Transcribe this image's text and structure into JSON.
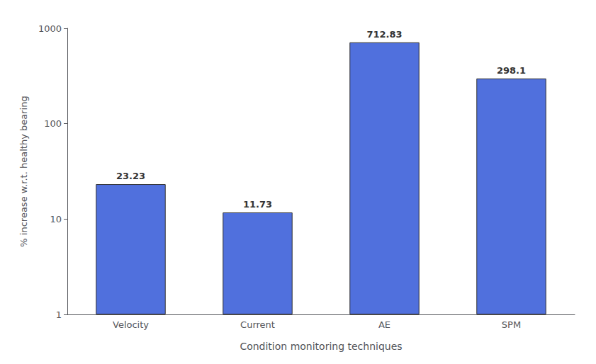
{
  "chart_data": {
    "type": "bar",
    "categories": [
      "Velocity",
      "Current",
      "AE",
      "SPM"
    ],
    "values": [
      23.23,
      11.73,
      712.83,
      298.1
    ],
    "xlabel": "Condition monitoring techniques",
    "ylabel": "% increase w.r.t. healthy bearing",
    "log": "y",
    "ylim": [
      1,
      1000
    ],
    "yticks": [
      1,
      10,
      100,
      1000
    ],
    "data_labels": true,
    "grid": false
  }
}
